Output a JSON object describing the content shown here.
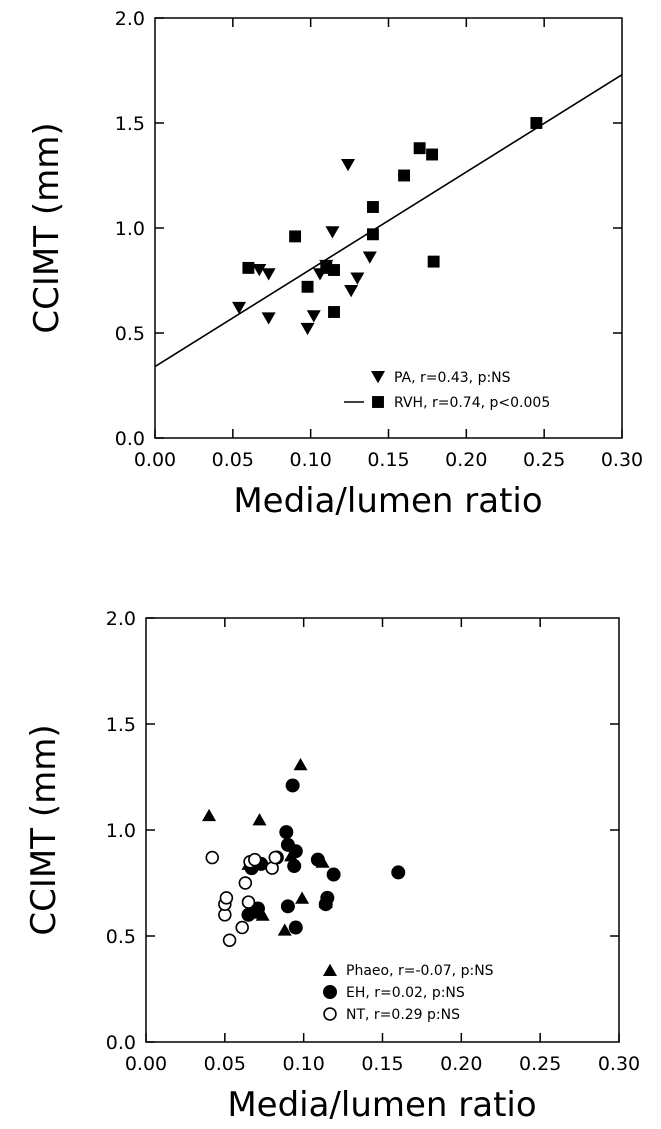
{
  "chart_data": [
    {
      "type": "scatter",
      "xlabel": "Media/lumen ratio",
      "ylabel": "CCIMT (mm)",
      "xlim": [
        0,
        0.3
      ],
      "ylim": [
        0,
        2.0
      ],
      "xticks": [
        "0.00",
        "0.05",
        "0.10",
        "0.15",
        "0.20",
        "0.25",
        "0.30"
      ],
      "yticks": [
        "0.0",
        "0.5",
        "1.0",
        "1.5",
        "2.0"
      ],
      "series": [
        {
          "name": "PA, r=0.43, p:NS",
          "marker": "triangle-down",
          "color": "#000000",
          "points": [
            [
              0.054,
              0.62
            ],
            [
              0.067,
              0.8
            ],
            [
              0.073,
              0.78
            ],
            [
              0.073,
              0.57
            ],
            [
              0.098,
              0.52
            ],
            [
              0.102,
              0.58
            ],
            [
              0.106,
              0.78
            ],
            [
              0.11,
              0.82
            ],
            [
              0.114,
              0.98
            ],
            [
              0.124,
              1.3
            ],
            [
              0.126,
              0.7
            ],
            [
              0.13,
              0.76
            ],
            [
              0.138,
              0.86
            ]
          ]
        },
        {
          "name": "RVH, r=0.74, p<0.005",
          "marker": "square",
          "color": "#000000",
          "line": true,
          "points": [
            [
              0.06,
              0.81
            ],
            [
              0.09,
              0.96
            ],
            [
              0.098,
              0.72
            ],
            [
              0.11,
              0.81
            ],
            [
              0.115,
              0.8
            ],
            [
              0.115,
              0.6
            ],
            [
              0.14,
              1.1
            ],
            [
              0.14,
              0.97
            ],
            [
              0.16,
              1.25
            ],
            [
              0.17,
              1.38
            ],
            [
              0.178,
              1.35
            ],
            [
              0.179,
              0.84
            ],
            [
              0.245,
              1.5
            ]
          ],
          "fit_line": {
            "x": [
              0.0,
              0.3
            ],
            "y": [
              0.34,
              1.73
            ]
          }
        }
      ],
      "legend": "bottom-right"
    },
    {
      "type": "scatter",
      "xlabel": "Media/lumen ratio",
      "ylabel": "CCIMT (mm)",
      "xlim": [
        0,
        0.3
      ],
      "ylim": [
        0,
        2.0
      ],
      "xticks": [
        "0.00",
        "0.05",
        "0.10",
        "0.15",
        "0.20",
        "0.25",
        "0.30"
      ],
      "yticks": [
        "0.0",
        "0.5",
        "1.0",
        "1.5",
        "2.0"
      ],
      "series": [
        {
          "name": "Phaeo, r=-0.07, p:NS",
          "marker": "triangle-up",
          "color": "#000000",
          "points": [
            [
              0.04,
              1.07
            ],
            [
              0.065,
              0.84
            ],
            [
              0.072,
              1.05
            ],
            [
              0.072,
              0.61
            ],
            [
              0.074,
              0.6
            ],
            [
              0.088,
              0.53
            ],
            [
              0.092,
              0.88
            ],
            [
              0.098,
              1.31
            ],
            [
              0.099,
              0.68
            ],
            [
              0.112,
              0.85
            ],
            [
              0.114,
              0.66
            ]
          ]
        },
        {
          "name": "EH, r=0.02, p:NS",
          "marker": "circle-filled",
          "color": "#000000",
          "points": [
            [
              0.065,
              0.6
            ],
            [
              0.067,
              0.82
            ],
            [
              0.071,
              0.63
            ],
            [
              0.073,
              0.84
            ],
            [
              0.083,
              0.87
            ],
            [
              0.089,
              0.99
            ],
            [
              0.09,
              0.64
            ],
            [
              0.09,
              0.93
            ],
            [
              0.093,
              1.21
            ],
            [
              0.094,
              0.83
            ],
            [
              0.095,
              0.54
            ],
            [
              0.095,
              0.9
            ],
            [
              0.109,
              0.86
            ],
            [
              0.114,
              0.65
            ],
            [
              0.115,
              0.68
            ],
            [
              0.119,
              0.79
            ],
            [
              0.16,
              0.8
            ]
          ]
        },
        {
          "name": "NT, r=0.29 p:NS",
          "marker": "circle-open",
          "color": "#000000",
          "points": [
            [
              0.042,
              0.87
            ],
            [
              0.05,
              0.6
            ],
            [
              0.05,
              0.65
            ],
            [
              0.051,
              0.68
            ],
            [
              0.053,
              0.48
            ],
            [
              0.061,
              0.54
            ],
            [
              0.063,
              0.75
            ],
            [
              0.065,
              0.66
            ],
            [
              0.066,
              0.85
            ],
            [
              0.069,
              0.86
            ],
            [
              0.08,
              0.82
            ],
            [
              0.082,
              0.87
            ]
          ]
        }
      ],
      "legend": "bottom-right"
    }
  ]
}
